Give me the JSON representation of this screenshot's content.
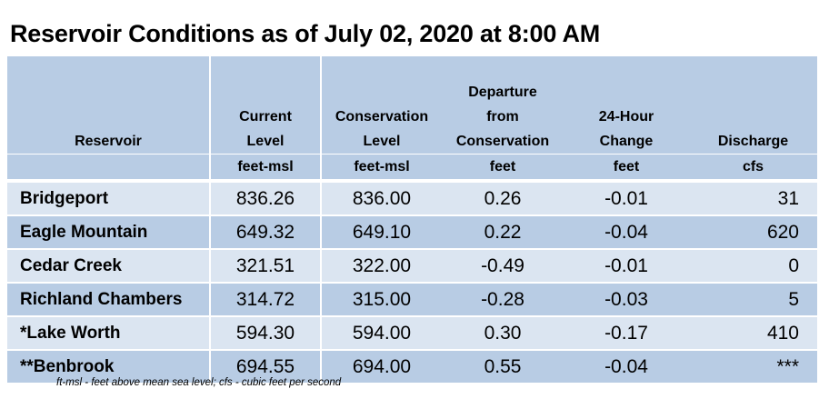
{
  "title": "Reservoir Conditions as of July 02, 2020 at 8:00 AM",
  "table": {
    "headers": [
      {
        "lines": [
          "Reservoir"
        ],
        "unit": ""
      },
      {
        "lines": [
          "Current",
          "Level"
        ],
        "unit": "feet-msl"
      },
      {
        "lines": [
          "Conservation",
          "Level"
        ],
        "unit": "feet-msl"
      },
      {
        "lines": [
          "Departure",
          "from",
          "Conservation"
        ],
        "unit": "feet"
      },
      {
        "lines": [
          "24-Hour",
          "Change"
        ],
        "unit": "feet"
      },
      {
        "lines": [
          "Discharge"
        ],
        "unit": "cfs"
      }
    ],
    "rows": [
      {
        "name": "Bridgeport",
        "current": "836.26",
        "conservation": "836.00",
        "departure": "0.26",
        "change": "-0.01",
        "discharge": "31"
      },
      {
        "name": "Eagle Mountain",
        "current": "649.32",
        "conservation": "649.10",
        "departure": "0.22",
        "change": "-0.04",
        "discharge": "620"
      },
      {
        "name": "Cedar Creek",
        "current": "321.51",
        "conservation": "322.00",
        "departure": "-0.49",
        "change": "-0.01",
        "discharge": "0"
      },
      {
        "name": "Richland Chambers",
        "current": "314.72",
        "conservation": "315.00",
        "departure": "-0.28",
        "change": "-0.03",
        "discharge": "5"
      },
      {
        "name": "*Lake Worth",
        "current": "594.30",
        "conservation": "594.00",
        "departure": "0.30",
        "change": "-0.17",
        "discharge": "410"
      },
      {
        "name": "**Benbrook",
        "current": "694.55",
        "conservation": "694.00",
        "departure": "0.55",
        "change": "-0.04",
        "discharge": "***"
      }
    ]
  },
  "footnote": "ft-msl - feet above mean sea level; cfs - cubic feet per second",
  "colors": {
    "header_bg": "#b8cce4",
    "row_light": "#dbe5f1",
    "row_dark": "#b8cce4"
  }
}
